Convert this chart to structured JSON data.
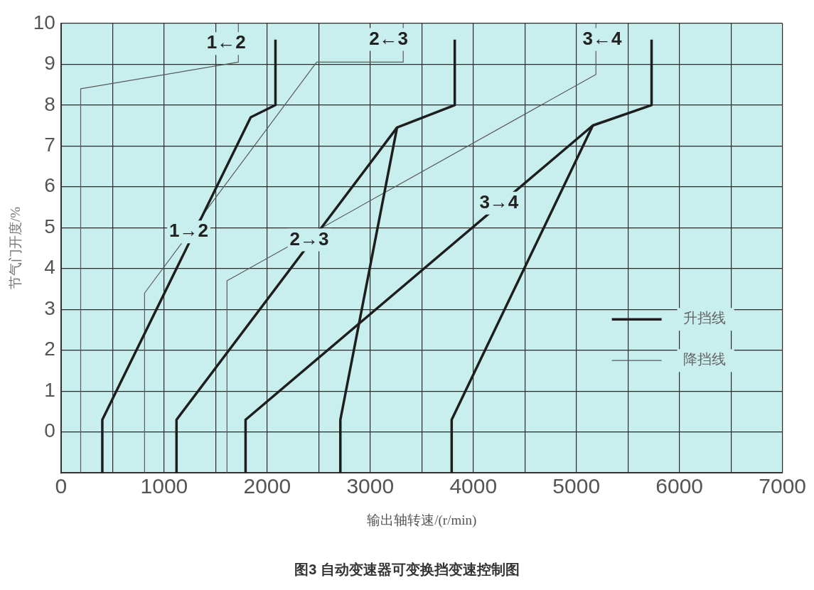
{
  "chart_data": {
    "type": "line",
    "title": "图3 自动变速器可变换挡变速控制图",
    "xlabel": "输出轴转速/(r/min)",
    "ylabel": "节气门开度/%",
    "xlim": [
      0,
      7000
    ],
    "xticks": [
      0,
      {
        "value": 500,
        "label": null
      },
      1000,
      {
        "value": 1500,
        "label": null
      },
      2000,
      {
        "value": 2500,
        "label": null
      },
      3000,
      {
        "value": 3500,
        "label": null
      },
      4000,
      {
        "value": 4500,
        "label": null
      },
      5000,
      {
        "value": 5500,
        "label": null
      },
      6000,
      {
        "value": 6500,
        "label": null
      },
      7000
    ],
    "ylim": [
      -1,
      10
    ],
    "yticks": [
      0,
      1,
      2,
      3,
      4,
      5,
      6,
      7,
      8,
      9,
      10
    ],
    "grid": true,
    "legend": "bottom right",
    "marker": "none",
    "line_style": "solid",
    "series": [
      {
        "name": "升挡线",
        "color": "#1e1e1e",
        "x": [
          400,
          400,
          1840,
          2080,
          2080
        ],
        "values": [
          -1,
          0.3,
          7.7,
          8,
          9.6
        ]
      },
      {
        "color": "#1e1e1e",
        "x": [
          1120,
          1120,
          3260,
          3820,
          3820
        ],
        "values": [
          -1,
          0.3,
          7.45,
          8,
          9.6
        ]
      },
      {
        "color": "#1e1e1e",
        "x": [
          2710,
          2710,
          3260
        ],
        "values": [
          -1,
          0.3,
          7.45
        ]
      },
      {
        "color": "#1e1e1e",
        "x": [
          1790,
          1790,
          5160,
          5730,
          5730
        ],
        "values": [
          -1,
          0.3,
          7.5,
          8,
          9.6
        ]
      },
      {
        "color": "#1e1e1e",
        "x": [
          3790,
          3790,
          5160
        ],
        "values": [
          -1,
          0.3,
          7.5
        ]
      },
      {
        "name": "降挡线",
        "color": "#5a5a5a",
        "x": [
          190,
          190,
          1720,
          1720
        ],
        "values": [
          -1,
          8.4,
          9.05,
          10
        ]
      },
      {
        "color": "#5a5a5a",
        "x": [
          810,
          810,
          2480,
          3320,
          3320
        ],
        "values": [
          -1,
          3.4,
          9.05,
          9.05,
          10
        ]
      },
      {
        "color": "#5a5a5a",
        "x": [
          1610,
          1610,
          5190,
          5190
        ],
        "values": [
          -1,
          3.7,
          8.75,
          10
        ]
      }
    ],
    "annotations": [
      "1←2",
      "2←3",
      "3←4",
      "1→2",
      "2→3",
      "3→4"
    ]
  }
}
